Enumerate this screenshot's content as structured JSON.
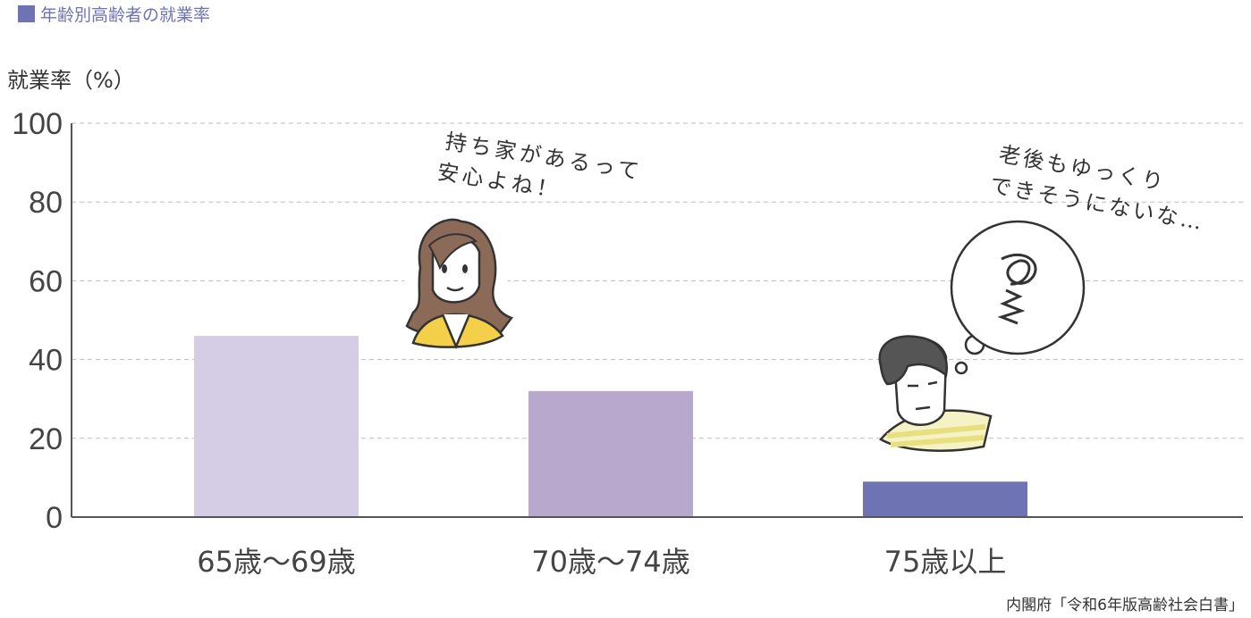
{
  "header": {
    "title": "年齢別高齢者の就業率",
    "accent": "#6d73b3"
  },
  "source": "内閣府「令和6年版高齢社会白書」",
  "speech": {
    "woman": [
      "持ち家があるって",
      "安心よね！"
    ],
    "man": [
      "老後もゆっくり",
      "できそうにないな…"
    ]
  },
  "chart_data": {
    "type": "bar",
    "ylabel": "就業率（%）",
    "xlabel": "",
    "ylim": [
      0,
      100
    ],
    "yticks": [
      0,
      20,
      40,
      60,
      80,
      100
    ],
    "grid": true,
    "categories": [
      "65歳〜69歳",
      "70歳〜74歳",
      "75歳以上"
    ],
    "values": [
      46,
      32,
      9
    ],
    "colors": [
      "#d5cce5",
      "#b8a8cd",
      "#6d73b3"
    ]
  }
}
